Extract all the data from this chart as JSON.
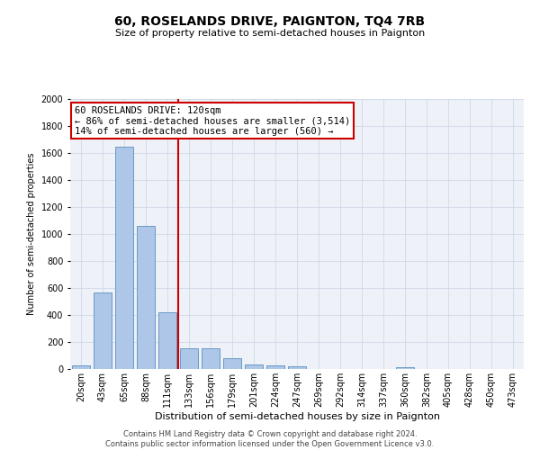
{
  "title": "60, ROSELANDS DRIVE, PAIGNTON, TQ4 7RB",
  "subtitle": "Size of property relative to semi-detached houses in Paignton",
  "xlabel": "Distribution of semi-detached houses by size in Paignton",
  "ylabel": "Number of semi-detached properties",
  "footer_line1": "Contains HM Land Registry data © Crown copyright and database right 2024.",
  "footer_line2": "Contains public sector information licensed under the Open Government Licence v3.0.",
  "bins": [
    "20sqm",
    "43sqm",
    "65sqm",
    "88sqm",
    "111sqm",
    "133sqm",
    "156sqm",
    "179sqm",
    "201sqm",
    "224sqm",
    "247sqm",
    "269sqm",
    "292sqm",
    "314sqm",
    "337sqm",
    "360sqm",
    "382sqm",
    "405sqm",
    "428sqm",
    "450sqm",
    "473sqm"
  ],
  "values": [
    25,
    570,
    1650,
    1060,
    420,
    155,
    155,
    80,
    35,
    30,
    20,
    0,
    0,
    0,
    0,
    15,
    0,
    0,
    0,
    0,
    0
  ],
  "bar_color": "#aec6e8",
  "bar_edge_color": "#5a8fc0",
  "vline_color": "#cc0000",
  "annotation_text": "60 ROSELANDS DRIVE: 120sqm\n← 86% of semi-detached houses are smaller (3,514)\n14% of semi-detached houses are larger (560) →",
  "annotation_box_color": "#ffffff",
  "annotation_box_edge": "#cc0000",
  "ylim": [
    0,
    2000
  ],
  "yticks": [
    0,
    200,
    400,
    600,
    800,
    1000,
    1200,
    1400,
    1600,
    1800,
    2000
  ],
  "grid_color": "#d0d8e8",
  "background_color": "#eef2f8",
  "title_fontsize": 10,
  "subtitle_fontsize": 8,
  "ylabel_fontsize": 7,
  "xlabel_fontsize": 8,
  "tick_fontsize": 7,
  "footer_fontsize": 6,
  "annotation_fontsize": 7.5
}
